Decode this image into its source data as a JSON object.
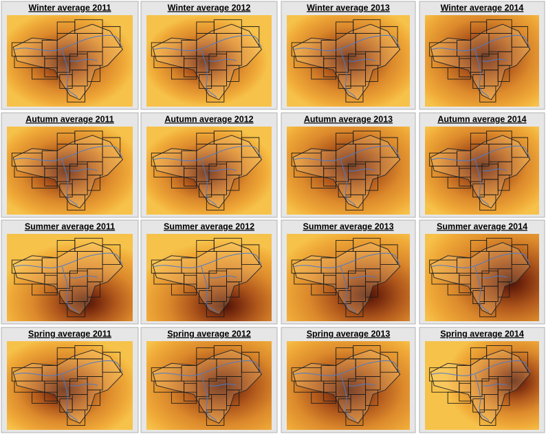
{
  "panels": [
    {
      "title": "Winter average 2011"
    },
    {
      "title": "Winter average 2012"
    },
    {
      "title": "Winter average 2013"
    },
    {
      "title": "Winter average 2014"
    },
    {
      "title": "Autumn average 2011"
    },
    {
      "title": "Autumn average 2012"
    },
    {
      "title": "Autumn average 2013"
    },
    {
      "title": "Autumn average 2014"
    },
    {
      "title": "Summer average 2011"
    },
    {
      "title": "Summer average 2012"
    },
    {
      "title": "Summer average 2013"
    },
    {
      "title": "Summer average 2014"
    },
    {
      "title": "Spring average 2011"
    },
    {
      "title": "Spring average 2012"
    },
    {
      "title": "Spring average 2013"
    },
    {
      "title": "Spring average 2014"
    }
  ]
}
